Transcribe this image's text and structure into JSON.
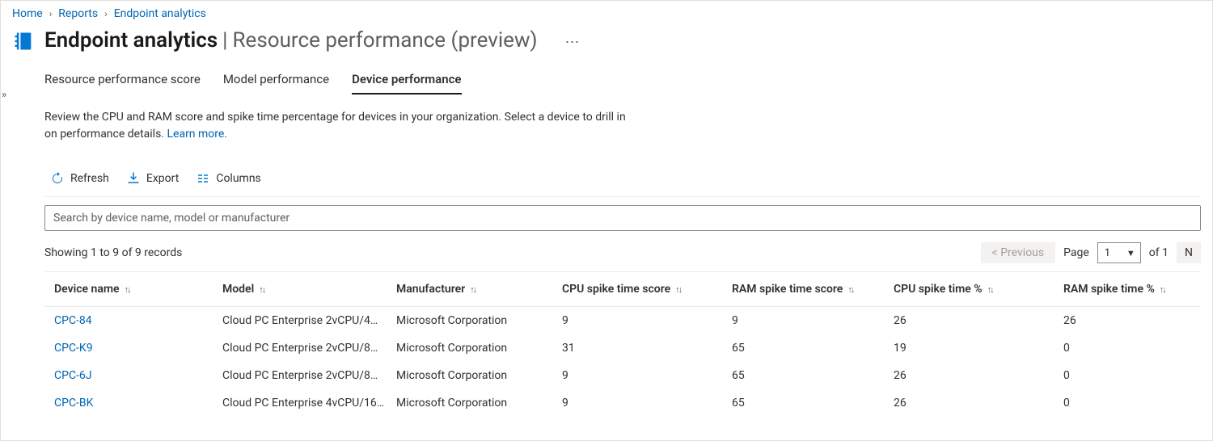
{
  "breadcrumb": {
    "items": [
      "Home",
      "Reports",
      "Endpoint analytics"
    ]
  },
  "header": {
    "title_bold": "Endpoint analytics",
    "title_sep": " | ",
    "title_light": "Resource performance (preview)"
  },
  "tabs": {
    "items": [
      {
        "label": "Resource performance score",
        "active": false
      },
      {
        "label": "Model performance",
        "active": false
      },
      {
        "label": "Device performance",
        "active": true
      }
    ]
  },
  "description": {
    "text": "Review the CPU and RAM score and spike time percentage for devices in your organization. Select a device to drill in on performance details. ",
    "learn_more": "Learn more."
  },
  "toolbar": {
    "refresh": "Refresh",
    "export": "Export",
    "columns": "Columns"
  },
  "search": {
    "placeholder": "Search by device name, model or manufacturer"
  },
  "records": {
    "showing": "Showing 1 to 9 of 9 records"
  },
  "pager": {
    "previous": "<  Previous",
    "page_label": "Page",
    "page_value": "1",
    "of_label": "of 1",
    "next": "N"
  },
  "table": {
    "columns": [
      "Device name",
      "Model",
      "Manufacturer",
      "CPU spike time score",
      "RAM spike time score",
      "CPU spike time %",
      "RAM spike time %"
    ],
    "rows": [
      {
        "name": "CPC-84",
        "model": "Cloud PC Enterprise 2vCPU/4…",
        "manufacturer": "Microsoft Corporation",
        "cpu_score": "9",
        "ram_score": "9",
        "cpu_pct": "26",
        "ram_pct": "26"
      },
      {
        "name": "CPC-K9",
        "model": "Cloud PC Enterprise 2vCPU/8…",
        "manufacturer": "Microsoft Corporation",
        "cpu_score": "31",
        "ram_score": "65",
        "cpu_pct": "19",
        "ram_pct": "0"
      },
      {
        "name": "CPC-6J",
        "model": "Cloud PC Enterprise 2vCPU/8…",
        "manufacturer": "Microsoft Corporation",
        "cpu_score": "9",
        "ram_score": "65",
        "cpu_pct": "26",
        "ram_pct": "0"
      },
      {
        "name": "CPC-BK",
        "model": "Cloud PC Enterprise 4vCPU/16…",
        "manufacturer": "Microsoft Corporation",
        "cpu_score": "9",
        "ram_score": "65",
        "cpu_pct": "26",
        "ram_pct": "0"
      }
    ]
  },
  "colors": {
    "link": "#0065b3",
    "accent": "#0078d4",
    "text": "#323130",
    "muted": "#605e5c",
    "border": "#edebe9"
  }
}
